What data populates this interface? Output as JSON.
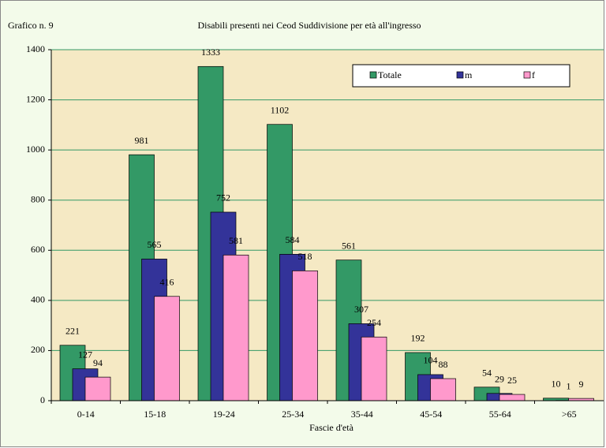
{
  "chart_data": {
    "type": "bar",
    "label": "Grafico n. 9",
    "title": "Disabili presenti nei Ceod Suddivisione per età all'ingresso",
    "x_label": "Fascie d'età",
    "categories": [
      "0-14",
      "15-18",
      "19-24",
      "25-34",
      "35-44",
      "45-54",
      "55-64",
      ">65"
    ],
    "series": [
      {
        "name": "Totale",
        "color": "#339966",
        "values": [
          221,
          981,
          1333,
          1102,
          561,
          192,
          54,
          10
        ]
      },
      {
        "name": "m",
        "color": "#333399",
        "values": [
          127,
          565,
          752,
          584,
          307,
          104,
          29,
          1
        ]
      },
      {
        "name": "f",
        "color": "#ff99cc",
        "values": [
          94,
          416,
          581,
          518,
          254,
          88,
          25,
          9
        ]
      }
    ],
    "ylim": [
      0,
      1400
    ],
    "yticks": [
      0,
      200,
      400,
      600,
      800,
      1000,
      1200,
      1400
    ],
    "grid": true,
    "legend": "top-right"
  }
}
